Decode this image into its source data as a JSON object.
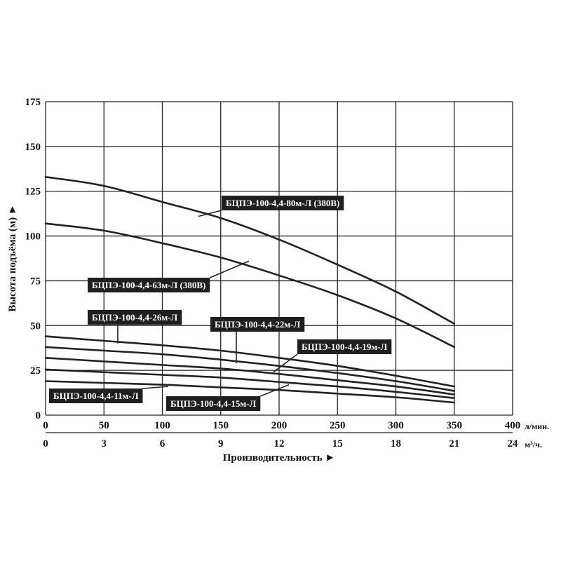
{
  "chart_data": {
    "type": "line",
    "ylabel": "Высота подъёма (м) ►",
    "xlabel": "Производительность ►",
    "x_unit_primary": "л/мин.",
    "x_unit_secondary": "м³/ч.",
    "xlim": [
      0,
      400
    ],
    "ylim": [
      0,
      175
    ],
    "x_ticks_primary": [
      "0",
      "50",
      "100",
      "150",
      "200",
      "250",
      "300",
      "350",
      "400"
    ],
    "x_ticks_secondary": [
      "0",
      "3",
      "6",
      "9",
      "12",
      "15",
      "18",
      "21",
      "24"
    ],
    "y_ticks": [
      "0",
      "25",
      "50",
      "75",
      "100",
      "125",
      "150",
      "175"
    ],
    "grid": true,
    "series": [
      {
        "name": "БЦПЭ-100-4,4-80м-Л (380В)",
        "x": [
          0,
          50,
          100,
          150,
          200,
          250,
          300,
          350
        ],
        "y": [
          133,
          128,
          119,
          110,
          98,
          84,
          69,
          51
        ]
      },
      {
        "name": "БЦПЭ-100-4,4-63м-Л (380В)",
        "x": [
          0,
          50,
          100,
          150,
          200,
          250,
          300,
          350
        ],
        "y": [
          107,
          103,
          96,
          88,
          78,
          67,
          54,
          38
        ]
      },
      {
        "name": "БЦПЭ-100-4,4-26м-Л",
        "x": [
          0,
          50,
          100,
          150,
          200,
          250,
          300,
          350
        ],
        "y": [
          44,
          41.5,
          39,
          36,
          32,
          27.5,
          22,
          16
        ]
      },
      {
        "name": "БЦПЭ-100-4,4-22м-Л",
        "x": [
          0,
          50,
          100,
          150,
          200,
          250,
          300,
          350
        ],
        "y": [
          38,
          36,
          34,
          31,
          27.5,
          23.5,
          19,
          13.5
        ]
      },
      {
        "name": "БЦПЭ-100-4,4-19м-Л",
        "x": [
          0,
          50,
          100,
          150,
          200,
          250,
          300,
          350
        ],
        "y": [
          32,
          30,
          28,
          26,
          23,
          19.5,
          16,
          11.5
        ]
      },
      {
        "name": "БЦПЭ-100-4,4-15м-Л",
        "x": [
          0,
          50,
          100,
          150,
          200,
          250,
          300,
          350
        ],
        "y": [
          25.5,
          24,
          22.5,
          21,
          18.5,
          16,
          13,
          9.5
        ]
      },
      {
        "name": "БЦПЭ-100-4,4-11м-Л",
        "x": [
          0,
          50,
          100,
          150,
          200,
          250,
          300,
          350
        ],
        "y": [
          19,
          18,
          17,
          15.5,
          14,
          12,
          10,
          7
        ]
      }
    ]
  }
}
